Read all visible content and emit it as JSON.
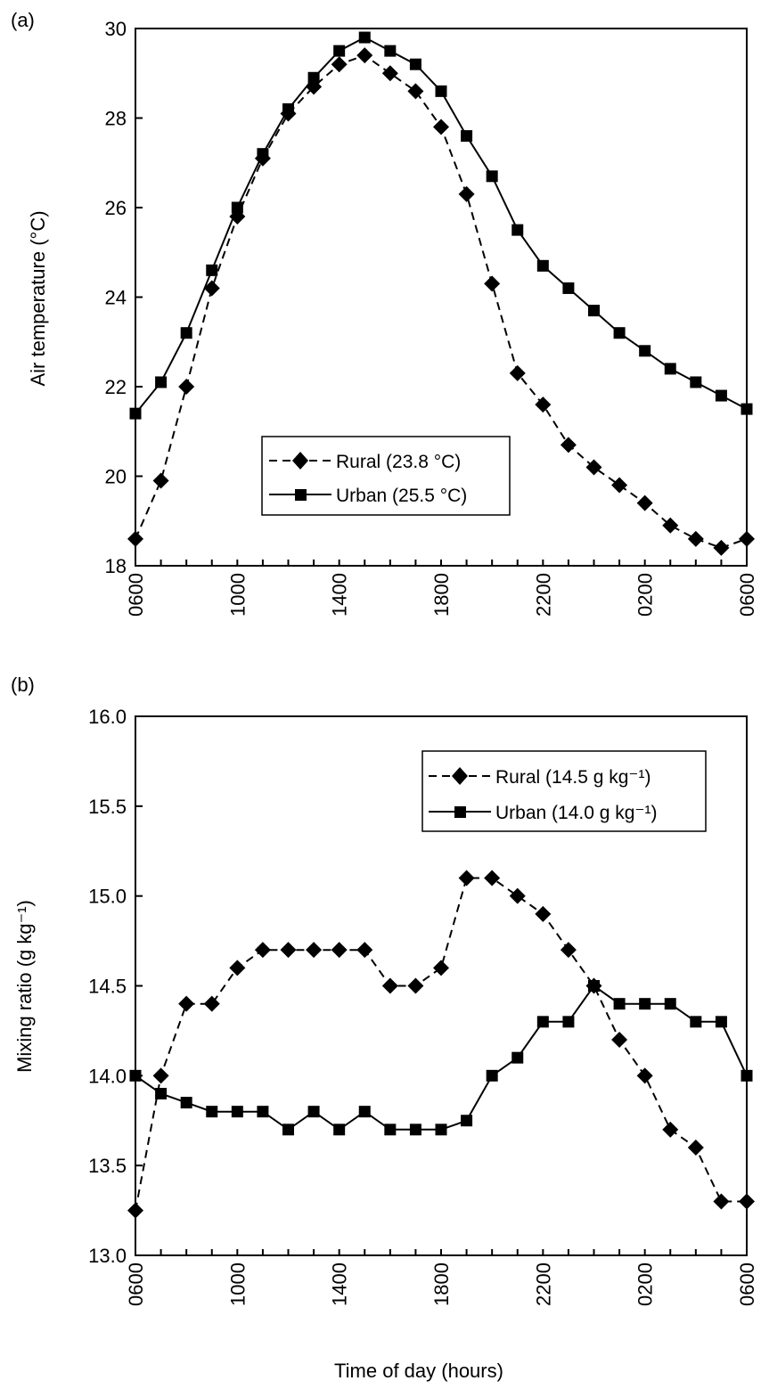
{
  "chart_data": [
    {
      "panel_label": "(a)",
      "type": "line",
      "ylabel": "Air temperature (°C)",
      "xlabel": "",
      "ylim": [
        18,
        30
      ],
      "yticks": [
        "18",
        "20",
        "22",
        "24",
        "26",
        "28",
        "30"
      ],
      "x_tick_labels": [
        "0600",
        "1000",
        "1400",
        "1800",
        "2200",
        "0200",
        "0600"
      ],
      "x_hours": [
        6,
        7,
        8,
        9,
        10,
        11,
        12,
        13,
        14,
        15,
        16,
        17,
        18,
        19,
        20,
        21,
        22,
        23,
        24,
        25,
        26,
        27,
        28,
        29,
        30
      ],
      "legend_position": "lower-center",
      "series": [
        {
          "name": "Rural (23.8 °C)",
          "style": "dashed",
          "marker": "diamond",
          "values": [
            18.6,
            19.9,
            22.0,
            24.2,
            25.8,
            27.1,
            28.1,
            28.7,
            29.2,
            29.4,
            29.0,
            28.6,
            27.8,
            26.3,
            24.3,
            22.3,
            21.6,
            20.7,
            20.2,
            19.8,
            19.4,
            18.9,
            18.6,
            18.4,
            18.6
          ]
        },
        {
          "name": "Urban (25.5 °C)",
          "style": "solid",
          "marker": "square",
          "values": [
            21.4,
            22.1,
            23.2,
            24.6,
            26.0,
            27.2,
            28.2,
            28.9,
            29.5,
            29.8,
            29.5,
            29.2,
            28.6,
            27.6,
            26.7,
            25.5,
            24.7,
            24.2,
            23.7,
            23.2,
            22.8,
            22.4,
            22.1,
            21.8,
            21.5
          ]
        }
      ]
    },
    {
      "panel_label": "(b)",
      "type": "line",
      "ylabel": "Mixing ratio (g kg⁻¹)",
      "xlabel": "Time of day (hours)",
      "ylim": [
        13.0,
        16.0
      ],
      "yticks": [
        "13.0",
        "13.5",
        "14.0",
        "14.5",
        "15.0",
        "15.5",
        "16.0"
      ],
      "x_tick_labels": [
        "0600",
        "1000",
        "1400",
        "1800",
        "2200",
        "0200",
        "0600"
      ],
      "x_hours": [
        6,
        7,
        8,
        9,
        10,
        11,
        12,
        13,
        14,
        15,
        16,
        17,
        18,
        19,
        20,
        21,
        22,
        23,
        24,
        25,
        26,
        27,
        28,
        29,
        30
      ],
      "legend_position": "top-right",
      "series": [
        {
          "name": "Rural (14.5 g kg⁻¹)",
          "style": "dashed",
          "marker": "diamond",
          "values": [
            13.25,
            14.0,
            14.4,
            14.4,
            14.6,
            14.7,
            14.7,
            14.7,
            14.7,
            14.7,
            14.5,
            14.5,
            14.6,
            15.1,
            15.1,
            15.0,
            14.9,
            14.7,
            14.5,
            14.2,
            14.0,
            13.7,
            13.6,
            13.3,
            13.3
          ]
        },
        {
          "name": "Urban (14.0 g kg⁻¹)",
          "style": "solid",
          "marker": "square",
          "values": [
            14.0,
            13.9,
            13.85,
            13.8,
            13.8,
            13.8,
            13.7,
            13.8,
            13.7,
            13.8,
            13.7,
            13.7,
            13.7,
            13.75,
            14.0,
            14.1,
            14.3,
            14.3,
            14.5,
            14.4,
            14.4,
            14.4,
            14.3,
            14.3,
            14.0
          ]
        }
      ]
    }
  ]
}
